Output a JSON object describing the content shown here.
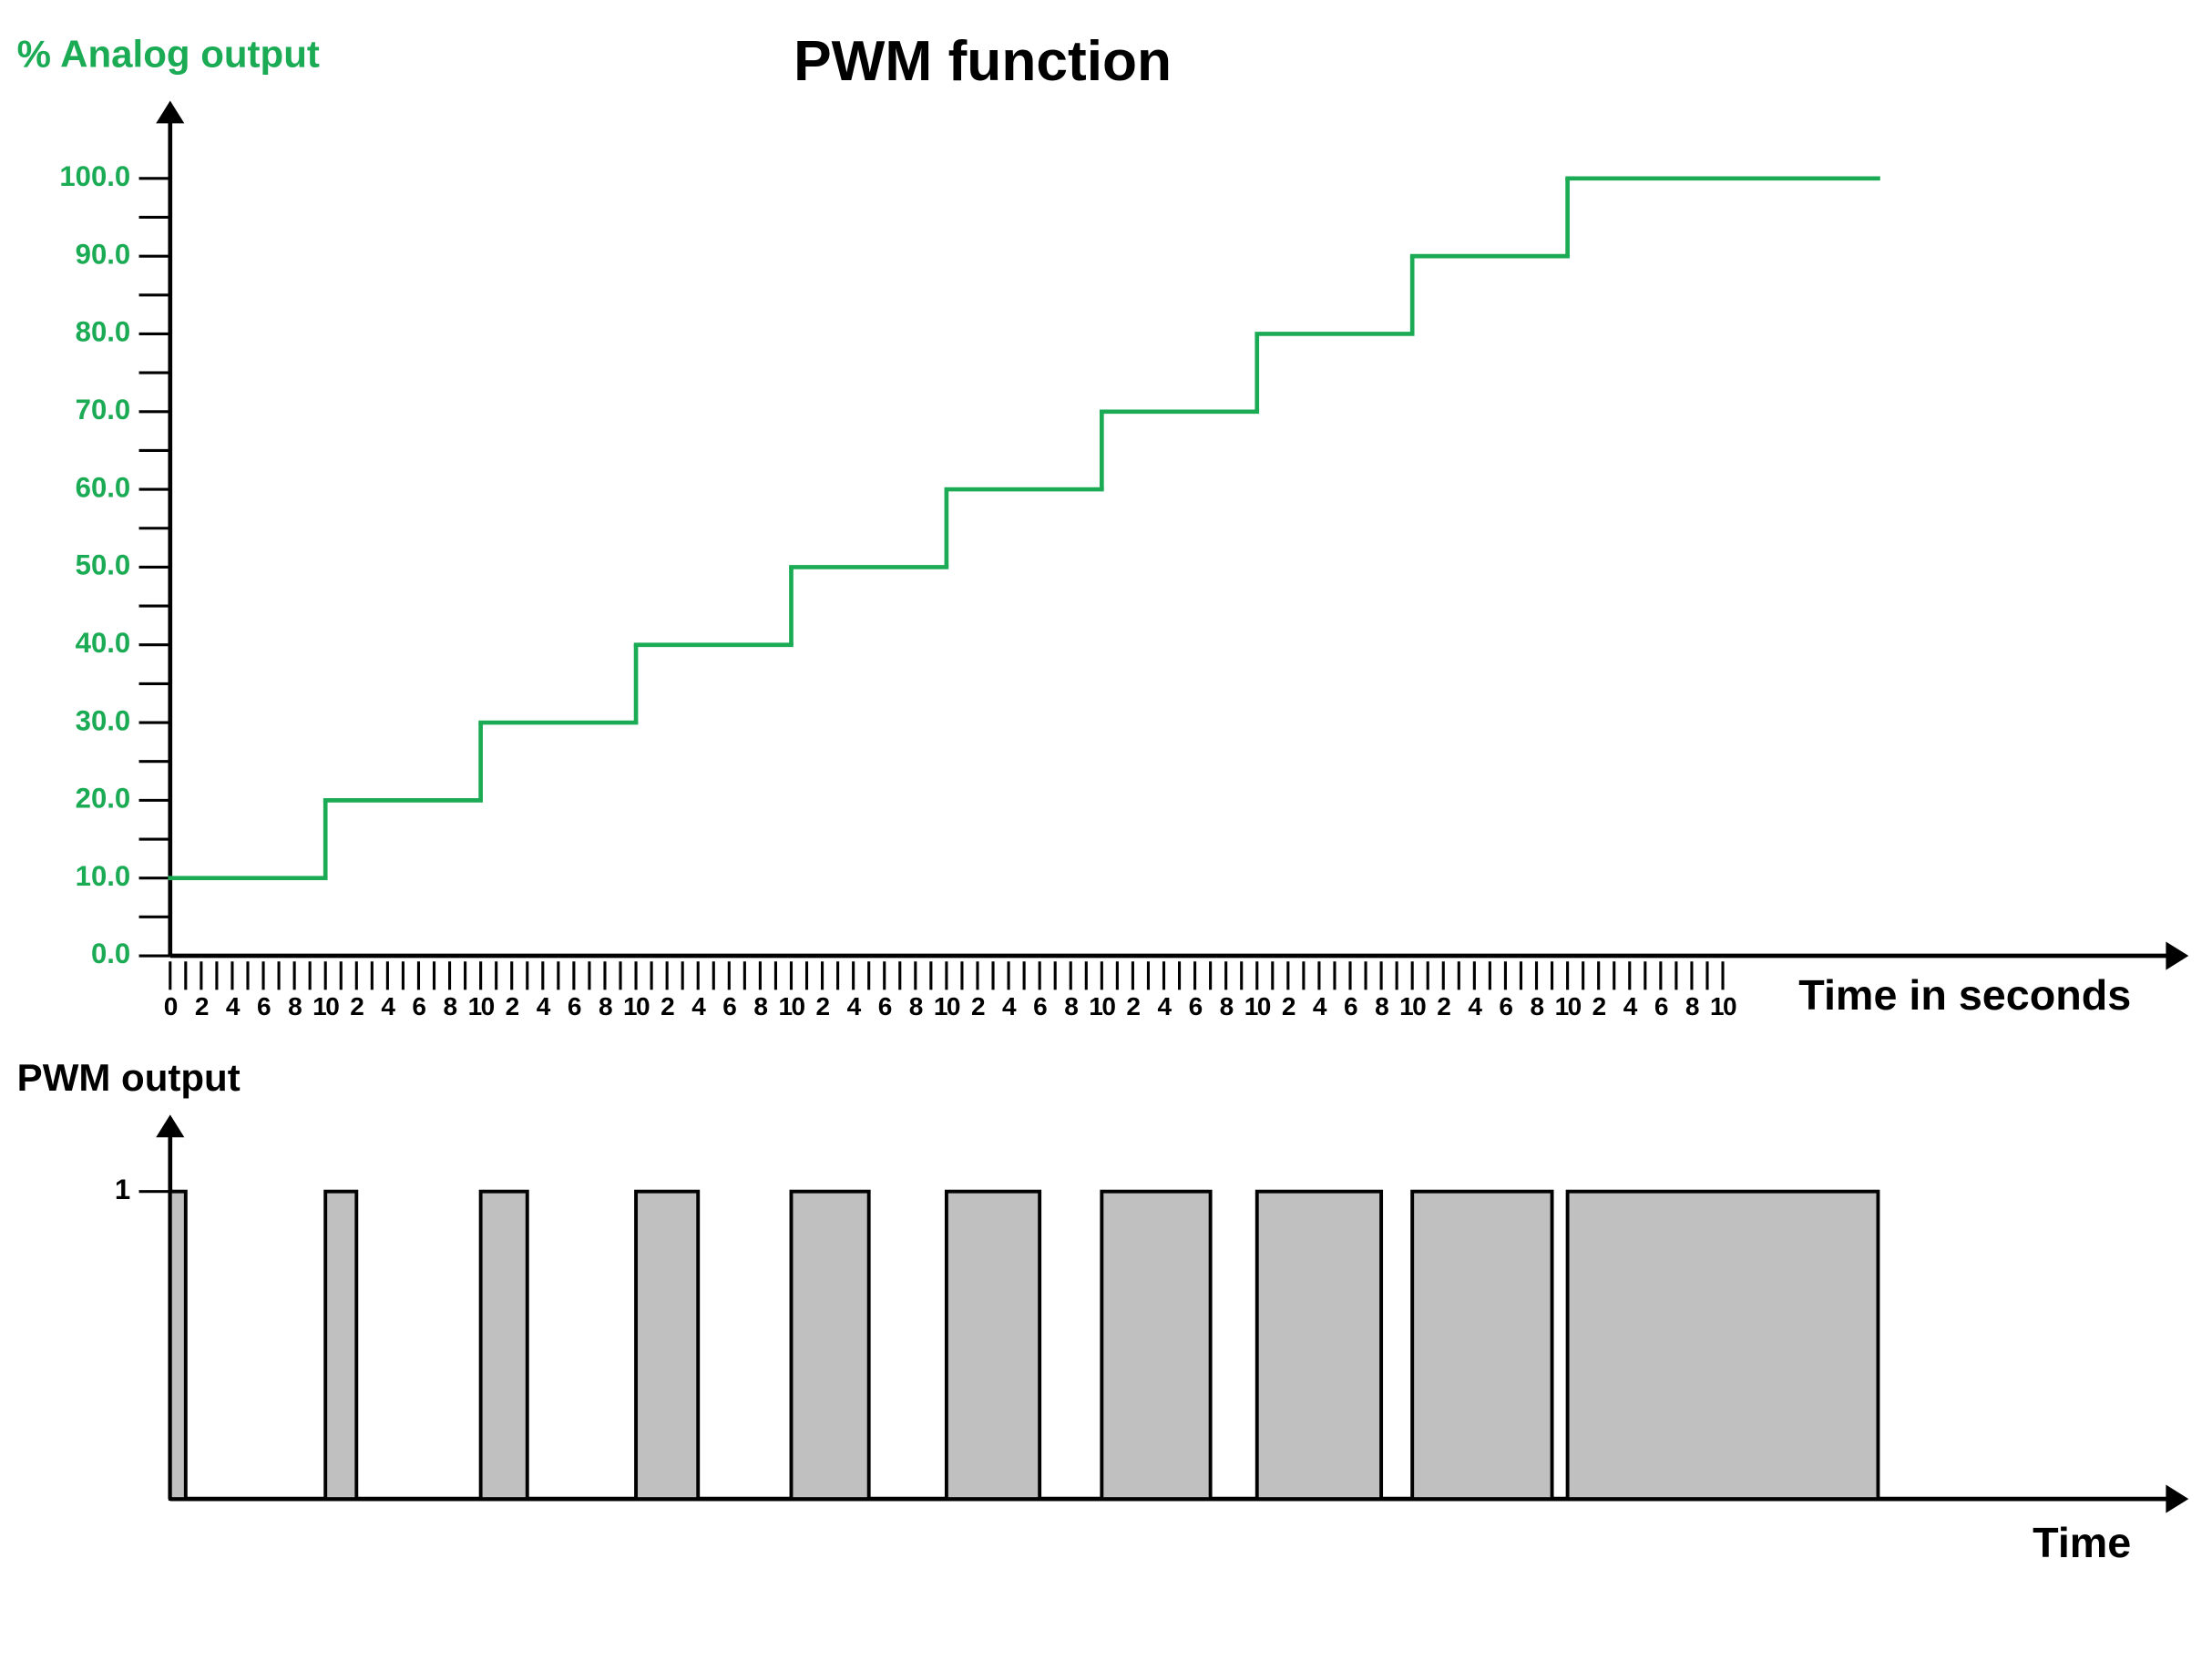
{
  "chart_data": [
    {
      "type": "step",
      "title": "PWM function",
      "ylabel": "% Analog output",
      "xlabel": "Time in seconds",
      "ylabel_color": "#1aab54",
      "series": [
        {
          "color": "#1aab54",
          "bins": [
            0,
            10,
            20,
            30,
            40,
            50,
            60,
            70,
            80,
            90,
            110
          ],
          "values": [
            10,
            20,
            30,
            40,
            50,
            60,
            70,
            80,
            90,
            100
          ]
        }
      ],
      "xlim": [
        0,
        130
      ],
      "ylim": [
        0,
        110
      ],
      "xticks": [
        0,
        2,
        4,
        6,
        8,
        10,
        {
          "value": 12,
          "label": "2"
        },
        {
          "value": 14,
          "label": "4"
        },
        {
          "value": 16,
          "label": "6"
        },
        {
          "value": 18,
          "label": "8"
        },
        {
          "value": 20,
          "label": "10"
        },
        {
          "value": 22,
          "label": "2"
        },
        {
          "value": 24,
          "label": "4"
        },
        {
          "value": 26,
          "label": "6"
        },
        {
          "value": 28,
          "label": "8"
        },
        {
          "value": 30,
          "label": "10"
        },
        {
          "value": 32,
          "label": "2"
        },
        {
          "value": 34,
          "label": "4"
        },
        {
          "value": 36,
          "label": "6"
        },
        {
          "value": 38,
          "label": "8"
        },
        {
          "value": 40,
          "label": "10"
        },
        {
          "value": 42,
          "label": "2"
        },
        {
          "value": 44,
          "label": "4"
        },
        {
          "value": 46,
          "label": "6"
        },
        {
          "value": 48,
          "label": "8"
        },
        {
          "value": 50,
          "label": "10"
        },
        {
          "value": 52,
          "label": "2"
        },
        {
          "value": 54,
          "label": "4"
        },
        {
          "value": 56,
          "label": "6"
        },
        {
          "value": 58,
          "label": "8"
        },
        {
          "value": 60,
          "label": "10"
        },
        {
          "value": 62,
          "label": "2"
        },
        {
          "value": 64,
          "label": "4"
        },
        {
          "value": 66,
          "label": "6"
        },
        {
          "value": 68,
          "label": "8"
        },
        {
          "value": 70,
          "label": "10"
        },
        {
          "value": 72,
          "label": "2"
        },
        {
          "value": 74,
          "label": "4"
        },
        {
          "value": 76,
          "label": "6"
        },
        {
          "value": 78,
          "label": "8"
        },
        {
          "value": 80,
          "label": "10"
        },
        {
          "value": 82,
          "label": "2"
        },
        {
          "value": 84,
          "label": "4"
        },
        {
          "value": 86,
          "label": "6"
        },
        {
          "value": 88,
          "label": "8"
        },
        {
          "value": 90,
          "label": "10"
        },
        {
          "value": 92,
          "label": "2"
        },
        {
          "value": 94,
          "label": "4"
        },
        {
          "value": 96,
          "label": "6"
        },
        {
          "value": 98,
          "label": "8"
        },
        {
          "value": 100,
          "label": "10"
        }
      ],
      "xminorticks": [
        1,
        3,
        5,
        7,
        9,
        11,
        13,
        15,
        17,
        19,
        21,
        23,
        25,
        27,
        29,
        31,
        33,
        35,
        37,
        39,
        41,
        43,
        45,
        47,
        49,
        51,
        53,
        55,
        57,
        59,
        61,
        63,
        65,
        67,
        69,
        71,
        73,
        75,
        77,
        79,
        81,
        83,
        85,
        87,
        89,
        91,
        93,
        95,
        97,
        99
      ],
      "yticks": [
        {
          "value": 0,
          "label": "0.0"
        },
        {
          "value": 10,
          "label": "10.0"
        },
        {
          "value": 20,
          "label": "20.0"
        },
        {
          "value": 30,
          "label": "30.0"
        },
        {
          "value": 40,
          "label": "40.0"
        },
        {
          "value": 50,
          "label": "50.0"
        },
        {
          "value": 60,
          "label": "60.0"
        },
        {
          "value": 70,
          "label": "70.0"
        },
        {
          "value": 80,
          "label": "80.0"
        },
        {
          "value": 90,
          "label": "90.0"
        },
        {
          "value": 100,
          "label": "100.0"
        }
      ],
      "yminorticks": [
        5,
        15,
        25,
        35,
        45,
        55,
        65,
        75,
        85,
        95
      ]
    },
    {
      "type": "pulse",
      "ylabel": "PWM output",
      "xlabel": "Time",
      "series": [
        {
          "color": "#c0c0c0",
          "starts": [
            0,
            10,
            20,
            30,
            40,
            50,
            60,
            70,
            80,
            90
          ],
          "ends": [
            1,
            12,
            23,
            34,
            45,
            56,
            67,
            78,
            89,
            110
          ],
          "values": [
            1,
            1,
            1,
            1,
            1,
            1,
            1,
            1,
            1,
            1
          ]
        }
      ],
      "xlim": [
        0,
        130
      ],
      "ylim": [
        0,
        1.25
      ],
      "yticks": [
        1
      ]
    }
  ]
}
